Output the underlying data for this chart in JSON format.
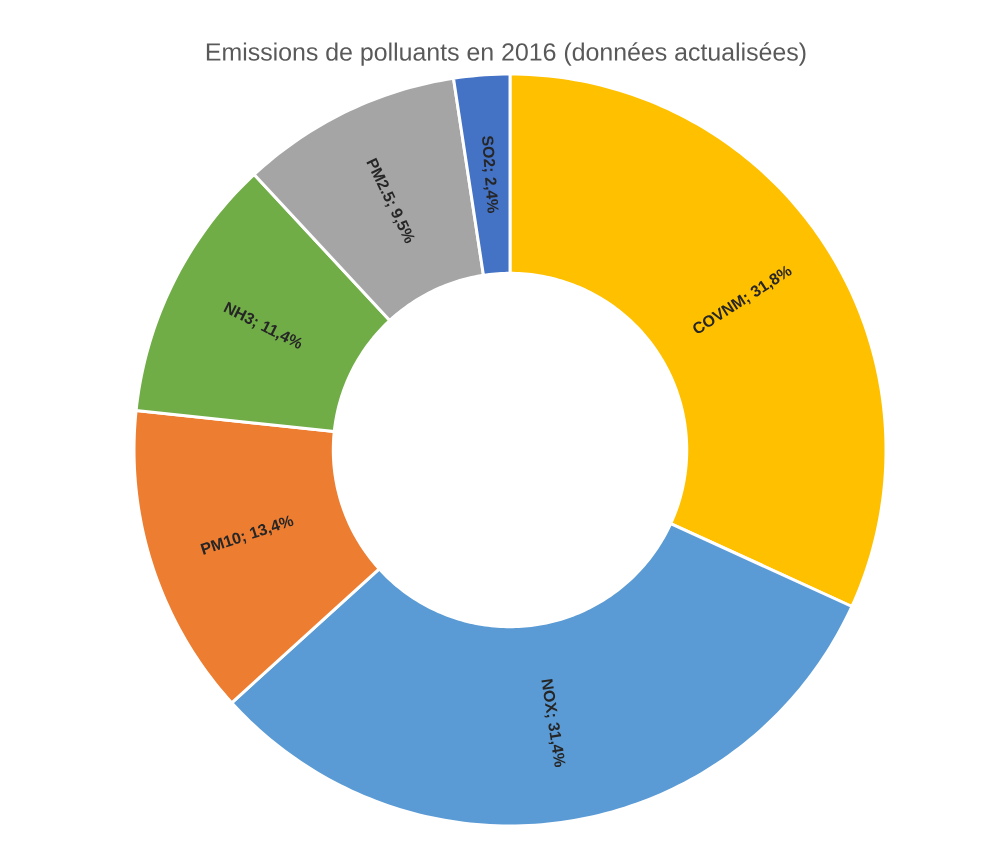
{
  "chart_data": {
    "type": "donut",
    "title": "Emissions de polluants en 2016 (données actualisées)",
    "categories": [
      "COVNM; 31,8%",
      "NOX; 31,4%",
      "PM10; 13,4%",
      "NH3; 11,4%",
      "PM2.5; 9,5%",
      "SO2; 2,4%"
    ],
    "values": [
      31.8,
      31.4,
      13.4,
      11.4,
      9.5,
      2.4
    ],
    "colors": [
      "#ffc000",
      "#5b9bd5",
      "#ed7d31",
      "#70ad47",
      "#a5a5a5",
      "#4472c4"
    ]
  }
}
